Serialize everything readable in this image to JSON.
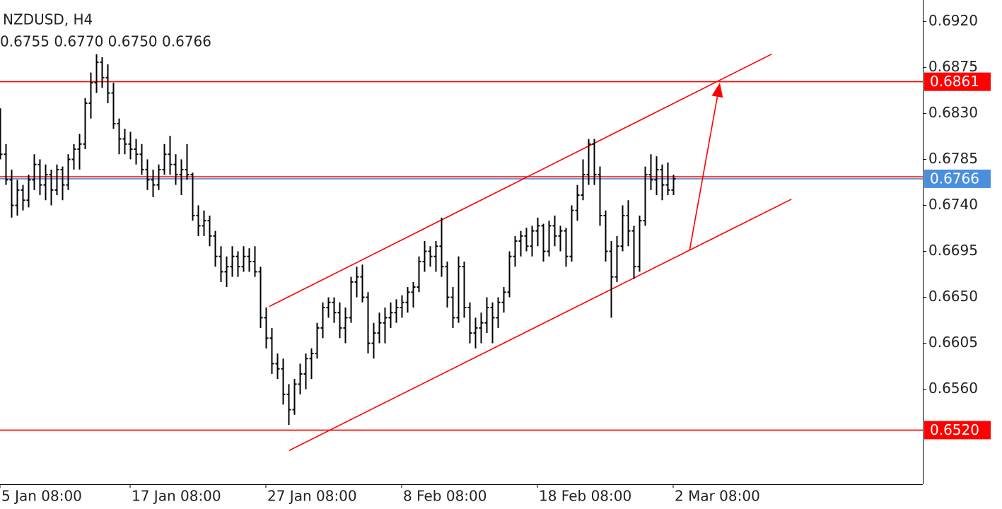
{
  "chart_data": {
    "type": "ohlc",
    "title": "NZDUSD, H4",
    "subtitle": "0.6755 0.6770 0.6750 0.6766",
    "bar_color": "#000000",
    "xlim": [
      0,
      163.125
    ],
    "ylim": [
      0.6467,
      0.6941
    ],
    "xticks": [
      {
        "value": 0,
        "label": "5 Jan 08:00"
      },
      {
        "value": 23,
        "label": "17 Jan 08:00"
      },
      {
        "value": 47,
        "label": "27 Jan 08:00"
      },
      {
        "value": 71,
        "label": "8 Feb 08:00"
      },
      {
        "value": 95,
        "label": "18 Feb 08:00"
      },
      {
        "value": 119,
        "label": "2 Mar 08:00"
      }
    ],
    "yticks": [
      {
        "value": 0.692,
        "label": "0.6920"
      },
      0.6875,
      {
        "value": 0.683,
        "label": "0.6830"
      },
      0.6785,
      {
        "value": 0.674,
        "label": "0.6740"
      },
      0.6695,
      {
        "value": 0.665,
        "label": "0.6650"
      },
      0.6605,
      {
        "value": 0.656,
        "label": "0.6560"
      }
    ],
    "hlines": [
      {
        "value": 0.6861,
        "label": "0.6861",
        "color": "#ff0000"
      },
      {
        "value": 0.6768,
        "color": "#ff0000"
      },
      {
        "value": 0.6766,
        "label": "0.6766",
        "color": "#4a8fdc"
      },
      {
        "value": 0.652,
        "label": "0.6520",
        "color": "#ff0000"
      }
    ],
    "trendlines": [
      {
        "x": [
          47.6,
          136.4
        ],
        "y": [
          0.6641,
          0.6888
        ],
        "color": "#ff0000"
      },
      {
        "x": [
          51.1,
          139.9
        ],
        "y": [
          0.65,
          0.6746
        ],
        "color": "#ff0000"
      }
    ],
    "arrow": {
      "x": [
        121.9,
        127.25
      ],
      "y": [
        0.6696,
        0.686
      ],
      "color": "#ff0000"
    },
    "ohlc": [
      [
        0.682,
        0.6835,
        0.6785,
        0.679
      ],
      [
        0.679,
        0.68,
        0.676,
        0.6765
      ],
      [
        0.6765,
        0.6775,
        0.6728,
        0.674
      ],
      [
        0.674,
        0.6765,
        0.673,
        0.6755
      ],
      [
        0.6755,
        0.676,
        0.6735,
        0.6745
      ],
      [
        0.6745,
        0.677,
        0.6738,
        0.6765
      ],
      [
        0.6765,
        0.679,
        0.6755,
        0.678
      ],
      [
        0.678,
        0.6785,
        0.675,
        0.676
      ],
      [
        0.676,
        0.678,
        0.6745,
        0.677
      ],
      [
        0.677,
        0.6775,
        0.674,
        0.6755
      ],
      [
        0.6755,
        0.678,
        0.675,
        0.6775
      ],
      [
        0.6775,
        0.6778,
        0.6745,
        0.676
      ],
      [
        0.676,
        0.679,
        0.6755,
        0.6785
      ],
      [
        0.6785,
        0.68,
        0.6775,
        0.6795
      ],
      [
        0.6795,
        0.681,
        0.6775,
        0.68
      ],
      [
        0.68,
        0.6845,
        0.6795,
        0.684
      ],
      [
        0.684,
        0.687,
        0.6825,
        0.686
      ],
      [
        0.686,
        0.6888,
        0.685,
        0.688
      ],
      [
        0.688,
        0.6885,
        0.6855,
        0.6865
      ],
      [
        0.6865,
        0.6878,
        0.684,
        0.685
      ],
      [
        0.685,
        0.686,
        0.6815,
        0.682
      ],
      [
        0.682,
        0.6825,
        0.679,
        0.6805
      ],
      [
        0.6805,
        0.6815,
        0.679,
        0.68
      ],
      [
        0.68,
        0.6812,
        0.6785,
        0.6795
      ],
      [
        0.6795,
        0.6805,
        0.678,
        0.679
      ],
      [
        0.679,
        0.68,
        0.677,
        0.6775
      ],
      [
        0.6775,
        0.6785,
        0.6755,
        0.6765
      ],
      [
        0.6765,
        0.6775,
        0.6748,
        0.676
      ],
      [
        0.676,
        0.678,
        0.6755,
        0.6775
      ],
      [
        0.6775,
        0.68,
        0.677,
        0.679
      ],
      [
        0.679,
        0.6808,
        0.677,
        0.678
      ],
      [
        0.678,
        0.679,
        0.676,
        0.677
      ],
      [
        0.677,
        0.6785,
        0.675,
        0.6775
      ],
      [
        0.6775,
        0.68,
        0.6765,
        0.677
      ],
      [
        0.677,
        0.6772,
        0.6725,
        0.673
      ],
      [
        0.673,
        0.674,
        0.671,
        0.672
      ],
      [
        0.672,
        0.6735,
        0.671,
        0.6725
      ],
      [
        0.6725,
        0.673,
        0.67,
        0.671
      ],
      [
        0.671,
        0.6715,
        0.668,
        0.669
      ],
      [
        0.669,
        0.67,
        0.6665,
        0.6675
      ],
      [
        0.6675,
        0.669,
        0.666,
        0.668
      ],
      [
        0.668,
        0.67,
        0.667,
        0.669
      ],
      [
        0.669,
        0.6695,
        0.667,
        0.668
      ],
      [
        0.668,
        0.67,
        0.6675,
        0.669
      ],
      [
        0.669,
        0.6698,
        0.6675,
        0.6685
      ],
      [
        0.6685,
        0.67,
        0.667,
        0.6675
      ],
      [
        0.6675,
        0.668,
        0.662,
        0.663
      ],
      [
        0.663,
        0.664,
        0.66,
        0.661
      ],
      [
        0.661,
        0.662,
        0.6575,
        0.6585
      ],
      [
        0.6585,
        0.6595,
        0.657,
        0.658
      ],
      [
        0.658,
        0.659,
        0.6545,
        0.6555
      ],
      [
        0.6555,
        0.6565,
        0.6525,
        0.654
      ],
      [
        0.654,
        0.657,
        0.6535,
        0.6565
      ],
      [
        0.6565,
        0.6585,
        0.6555,
        0.6575
      ],
      [
        0.6575,
        0.6595,
        0.656,
        0.659
      ],
      [
        0.659,
        0.66,
        0.657,
        0.6595
      ],
      [
        0.6595,
        0.6625,
        0.659,
        0.662
      ],
      [
        0.662,
        0.6645,
        0.661,
        0.664
      ],
      [
        0.664,
        0.665,
        0.663,
        0.6645
      ],
      [
        0.6645,
        0.665,
        0.6625,
        0.6635
      ],
      [
        0.6635,
        0.6645,
        0.661,
        0.662
      ],
      [
        0.662,
        0.664,
        0.6605,
        0.663
      ],
      [
        0.663,
        0.667,
        0.6625,
        0.6665
      ],
      [
        0.6665,
        0.668,
        0.665,
        0.667
      ],
      [
        0.667,
        0.6682,
        0.6645,
        0.665
      ],
      [
        0.665,
        0.6655,
        0.6595,
        0.6605
      ],
      [
        0.6605,
        0.6625,
        0.659,
        0.6615
      ],
      [
        0.6615,
        0.6635,
        0.6605,
        0.6625
      ],
      [
        0.6625,
        0.664,
        0.6605,
        0.663
      ],
      [
        0.663,
        0.6645,
        0.662,
        0.6635
      ],
      [
        0.6635,
        0.6648,
        0.6625,
        0.664
      ],
      [
        0.664,
        0.6652,
        0.663,
        0.6645
      ],
      [
        0.6645,
        0.666,
        0.6635,
        0.6655
      ],
      [
        0.6655,
        0.6665,
        0.664,
        0.666
      ],
      [
        0.666,
        0.669,
        0.6655,
        0.6685
      ],
      [
        0.6685,
        0.6705,
        0.6675,
        0.6695
      ],
      [
        0.6695,
        0.67,
        0.668,
        0.669
      ],
      [
        0.669,
        0.6705,
        0.6675,
        0.67
      ],
      [
        0.67,
        0.6728,
        0.667,
        0.668
      ],
      [
        0.668,
        0.6685,
        0.664,
        0.665
      ],
      [
        0.665,
        0.666,
        0.662,
        0.663
      ],
      [
        0.663,
        0.669,
        0.6625,
        0.668
      ],
      [
        0.668,
        0.6685,
        0.663,
        0.664
      ],
      [
        0.664,
        0.6645,
        0.6605,
        0.6615
      ],
      [
        0.6615,
        0.663,
        0.66,
        0.662
      ],
      [
        0.662,
        0.6635,
        0.6605,
        0.6625
      ],
      [
        0.6625,
        0.665,
        0.6615,
        0.664
      ],
      [
        0.664,
        0.6645,
        0.6605,
        0.663
      ],
      [
        0.663,
        0.665,
        0.662,
        0.6645
      ],
      [
        0.6645,
        0.666,
        0.6635,
        0.6655
      ],
      [
        0.6655,
        0.6695,
        0.665,
        0.669
      ],
      [
        0.669,
        0.671,
        0.668,
        0.6705
      ],
      [
        0.6705,
        0.6715,
        0.669,
        0.671
      ],
      [
        0.671,
        0.6718,
        0.6695,
        0.67
      ],
      [
        0.67,
        0.672,
        0.669,
        0.6715
      ],
      [
        0.6715,
        0.6728,
        0.67,
        0.672
      ],
      [
        0.672,
        0.6722,
        0.6685,
        0.6695
      ],
      [
        0.6695,
        0.6725,
        0.669,
        0.672
      ],
      [
        0.672,
        0.673,
        0.67,
        0.671
      ],
      [
        0.671,
        0.672,
        0.6695,
        0.6715
      ],
      [
        0.6715,
        0.6718,
        0.668,
        0.669
      ],
      [
        0.669,
        0.674,
        0.6685,
        0.6735
      ],
      [
        0.6735,
        0.676,
        0.6725,
        0.675
      ],
      [
        0.675,
        0.6785,
        0.6745,
        0.677
      ],
      [
        0.677,
        0.6805,
        0.676,
        0.68
      ],
      [
        0.68,
        0.6805,
        0.676,
        0.677
      ],
      [
        0.677,
        0.6778,
        0.672,
        0.673
      ],
      [
        0.673,
        0.6735,
        0.6685,
        0.6695
      ],
      [
        0.6695,
        0.6705,
        0.663,
        0.667
      ],
      [
        0.667,
        0.671,
        0.6665,
        0.67
      ],
      [
        0.67,
        0.674,
        0.6695,
        0.673
      ],
      [
        0.673,
        0.6745,
        0.67,
        0.6715
      ],
      [
        0.6715,
        0.672,
        0.6668,
        0.668
      ],
      [
        0.668,
        0.673,
        0.6675,
        0.6725
      ],
      [
        0.6725,
        0.6778,
        0.672,
        0.677
      ],
      [
        0.677,
        0.679,
        0.6755,
        0.6765
      ],
      [
        0.6765,
        0.6788,
        0.675,
        0.6775
      ],
      [
        0.6775,
        0.678,
        0.6745,
        0.676
      ],
      [
        0.676,
        0.6782,
        0.675,
        0.6755
      ],
      [
        0.6755,
        0.677,
        0.675,
        0.6766
      ]
    ]
  }
}
